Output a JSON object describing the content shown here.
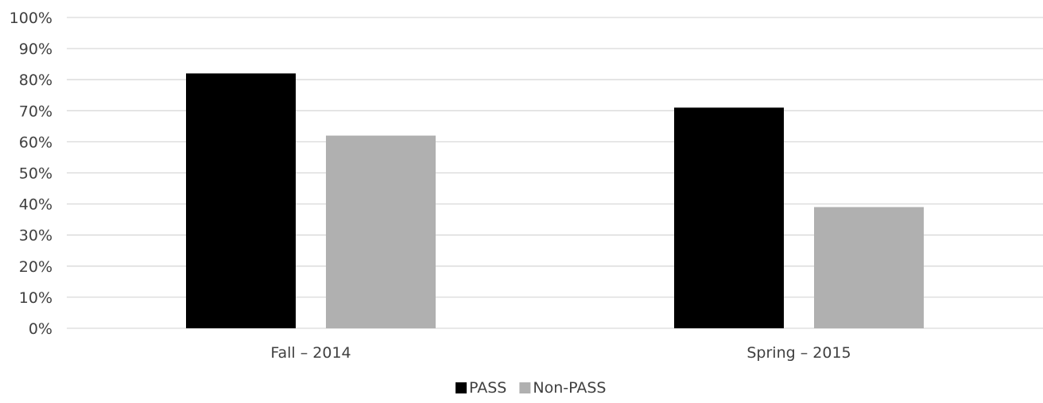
{
  "chart_data": {
    "type": "bar",
    "categories": [
      "Fall – 2014",
      "Spring – 2015"
    ],
    "series": [
      {
        "name": "PASS",
        "values": [
          82,
          71
        ],
        "color": "#000000"
      },
      {
        "name": "Non-PASS",
        "values": [
          62,
          39
        ],
        "color": "#b0b0b0"
      }
    ],
    "ylim": [
      0,
      100
    ],
    "yticks": [
      "0%",
      "10%",
      "20%",
      "30%",
      "40%",
      "50%",
      "60%",
      "70%",
      "80%",
      "90%",
      "100%"
    ],
    "grid": true,
    "gridline_color": "#d9d9d9",
    "legend_position": "bottom"
  }
}
